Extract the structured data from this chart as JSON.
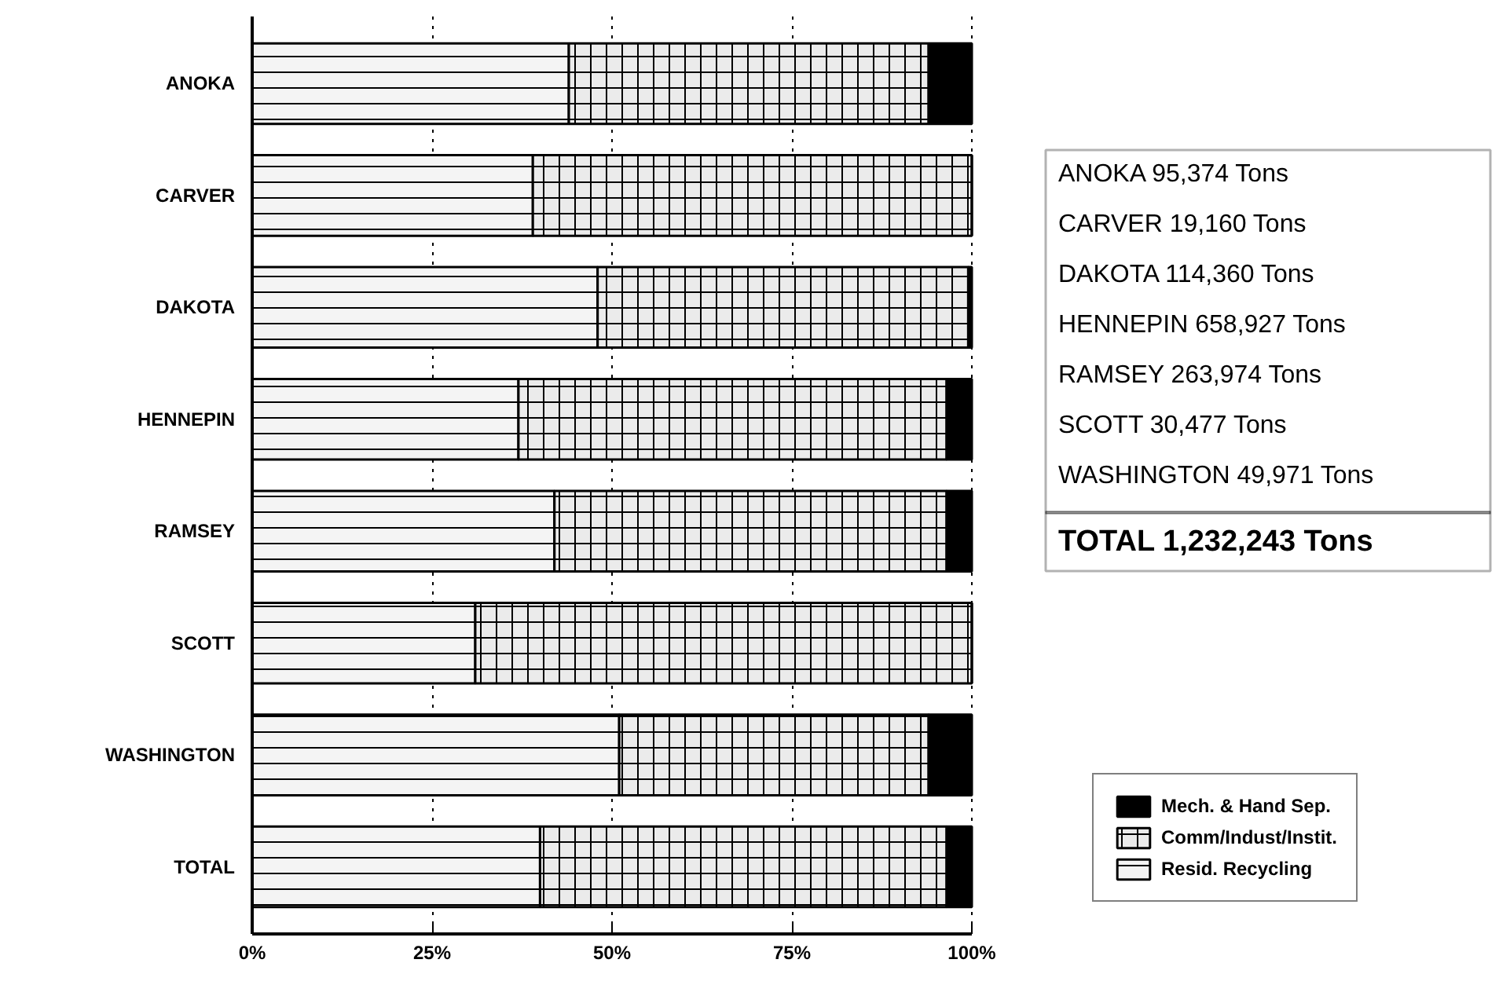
{
  "chart_data": {
    "type": "bar",
    "orientation": "horizontal",
    "stacked": true,
    "categories": [
      "ANOKA",
      "CARVER",
      "DAKOTA",
      "HENNEPIN",
      "RAMSEY",
      "SCOTT",
      "WASHINGTON",
      "TOTAL"
    ],
    "series": [
      {
        "name": "Resid. Recycling",
        "color": "#f4f4f4",
        "values": [
          44,
          39,
          48,
          37,
          42,
          31,
          51,
          40
        ]
      },
      {
        "name": "Comm/Indust/Instit.",
        "color": "#ebebeb",
        "values": [
          50,
          61,
          51.5,
          59.5,
          54.5,
          69,
          43,
          56.5
        ]
      },
      {
        "name": "Mech. & Hand Sep.",
        "color": "#000000",
        "values": [
          6,
          0,
          0.5,
          3.5,
          3.5,
          0,
          6,
          3.5
        ]
      }
    ],
    "xlim": [
      0,
      100
    ],
    "xticks": [
      {
        "value": 0,
        "label": "0%"
      },
      {
        "value": 25,
        "label": "25%"
      },
      {
        "value": 50,
        "label": "50%"
      },
      {
        "value": 75,
        "label": "75%"
      },
      {
        "value": 100,
        "label": "100%"
      }
    ],
    "grid": "x",
    "line_style": "dotted",
    "legend": "bottom right",
    "annotations": [
      "ANOKA 95,374 Tons",
      "CARVER 19,160 Tons",
      "DAKOTA 114,360 Tons",
      "HENNEPIN 658,927 Tons",
      "RAMSEY 263,974 Tons",
      "SCOTT 30,477 Tons",
      "WASHINGTON 49,971 Tons",
      "TOTAL 1,232,243 Tons"
    ]
  }
}
